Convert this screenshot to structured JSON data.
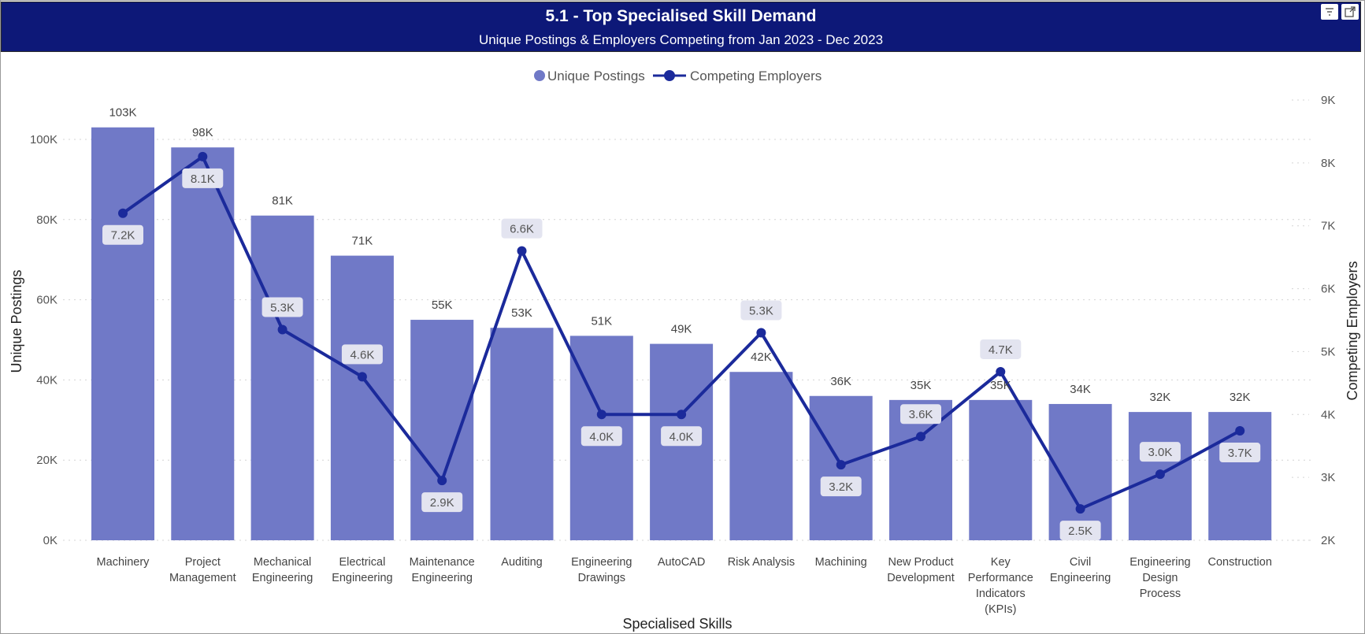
{
  "header": {
    "title": "5.1 - Top Specialised Skill Demand",
    "subtitle": "Unique Postings & Employers Competing from Jan 2023 - Dec 2023"
  },
  "icons": {
    "filter": "filter-icon",
    "focus": "focus-mode-icon"
  },
  "colors": {
    "header_bg": "#0d1878",
    "bar": "#7079c7",
    "line": "#1b2a9b",
    "grid": "#d4d4d4",
    "label_bg": "#e3e4f0"
  },
  "chart_data": {
    "type": "bar",
    "categories": [
      [
        "Machinery"
      ],
      [
        "Project",
        "Management"
      ],
      [
        "Mechanical",
        "Engineering"
      ],
      [
        "Electrical",
        "Engineering"
      ],
      [
        "Maintenance",
        "Engineering"
      ],
      [
        "Auditing"
      ],
      [
        "Engineering",
        "Drawings"
      ],
      [
        "AutoCAD"
      ],
      [
        "Risk Analysis"
      ],
      [
        "Machining"
      ],
      [
        "New Product",
        "Development"
      ],
      [
        "Key",
        "Performance",
        "Indicators",
        "(KPIs)"
      ],
      [
        "Civil",
        "Engineering"
      ],
      [
        "Engineering",
        "Design",
        "Process"
      ],
      [
        "Construction"
      ]
    ],
    "legend": {
      "bar_label": "Unique Postings",
      "line_label": "Competing Employers",
      "position": "top-center"
    },
    "xlabel": "Specialised Skills",
    "ylabel": "Unique Postings",
    "y2label": "Competing Employers",
    "ylim": [
      0,
      110000
    ],
    "y2lim": [
      2000,
      9000
    ],
    "y_ticks": [
      {
        "value": 0,
        "label": "0K"
      },
      {
        "value": 20000,
        "label": "20K"
      },
      {
        "value": 40000,
        "label": "40K"
      },
      {
        "value": 60000,
        "label": "60K"
      },
      {
        "value": 80000,
        "label": "80K"
      },
      {
        "value": 100000,
        "label": "100K"
      }
    ],
    "y2_ticks": [
      {
        "value": 2000,
        "label": "2K"
      },
      {
        "value": 3000,
        "label": "3K"
      },
      {
        "value": 4000,
        "label": "4K"
      },
      {
        "value": 5000,
        "label": "5K"
      },
      {
        "value": 6000,
        "label": "6K"
      },
      {
        "value": 7000,
        "label": "7K"
      },
      {
        "value": 8000,
        "label": "8K"
      },
      {
        "value": 9000,
        "label": "9K"
      }
    ],
    "series": [
      {
        "name": "Unique Postings",
        "type": "bar",
        "values": [
          103000,
          98000,
          81000,
          71000,
          55000,
          53000,
          51000,
          49000,
          42000,
          36000,
          35000,
          35000,
          34000,
          32000,
          32000
        ],
        "labels": [
          "103K",
          "98K",
          "81K",
          "71K",
          "55K",
          "53K",
          "51K",
          "49K",
          "42K",
          "36K",
          "35K",
          "35K",
          "34K",
          "32K",
          "32K"
        ]
      },
      {
        "name": "Competing Employers",
        "type": "line",
        "axis": "secondary",
        "values": [
          7200,
          8100,
          5350,
          4600,
          2950,
          6600,
          4000,
          4000,
          5300,
          3200,
          3650,
          4680,
          2500,
          3050,
          3740
        ],
        "labels": [
          "7.2K",
          "8.1K",
          "5.3K",
          "4.6K",
          "2.9K",
          "6.6K",
          "4.0K",
          "4.0K",
          "5.3K",
          "3.2K",
          "3.6K",
          "4.7K",
          "2.5K",
          "3.0K",
          "3.7K"
        ],
        "label_positions": [
          "below",
          "below",
          "above",
          "above",
          "below",
          "above",
          "below",
          "below",
          "above",
          "below",
          "above",
          "above",
          "below",
          "above",
          "below"
        ]
      }
    ]
  }
}
